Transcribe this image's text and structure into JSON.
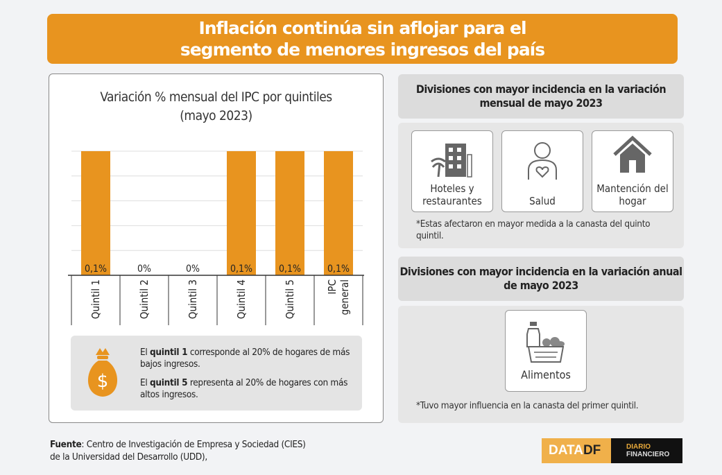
{
  "title": {
    "line1": "Inflación continúa sin aflojar para el",
    "line2": "segmento de menores ingresos del país"
  },
  "chart_data": {
    "type": "bar",
    "title": "Variación % mensual del IPC por quintiles",
    "subtitle": "(mayo 2023)",
    "categories": [
      "Quintil 1",
      "Quintil 2",
      "Quintil 3",
      "Quintil 4",
      "Quintil 5",
      "IPC general"
    ],
    "values": [
      0.1,
      0,
      0,
      0.1,
      0.1,
      0.1
    ],
    "data_labels": [
      "0,1%",
      "0%",
      "0%",
      "0,1%",
      "0,1%",
      "0,1%"
    ],
    "ylim": [
      0,
      0.1
    ],
    "grid": true,
    "bar_color": "#e8941f"
  },
  "note": {
    "p1_pre": "El ",
    "p1_bold": "quintil 1",
    "p1_post": " corresponde al 20% de hogares de más bajos ingresos.",
    "p2_pre": "El ",
    "p2_bold": "quintil 5",
    "p2_post": " representa al 20% de hogares con más altos ingresos.",
    "icon": "money-bag-icon"
  },
  "monthly": {
    "header": "Divisiones con mayor incidencia en la variación mensual de mayo 2023",
    "items": [
      {
        "label": "Hoteles y restaurantes",
        "icon": "hotel-icon"
      },
      {
        "label": "Salud",
        "icon": "health-icon"
      },
      {
        "label": "Mantención del hogar",
        "icon": "house-icon"
      }
    ],
    "footnote": "*Estas afectaron en mayor medida a la canasta del quinto quintil."
  },
  "annual": {
    "header": "Divisiones con mayor incidencia en la variación anual de mayo 2023",
    "items": [
      {
        "label": "Alimentos",
        "icon": "groceries-icon"
      }
    ],
    "footnote": "*Tuvo mayor influencia en la canasta del primer quintil."
  },
  "source": {
    "bold": "Fuente",
    "text": ": Centro de Investigación de Empresa y Sociedad (CIES)",
    "line2": "de la Universidad del Desarrollo (UDD),"
  },
  "logo": {
    "data": "DATA",
    "df": "DF",
    "brand1": "DIARIO",
    "brand2": "FINANCIERO"
  },
  "colors": {
    "accent": "#e8941f"
  }
}
